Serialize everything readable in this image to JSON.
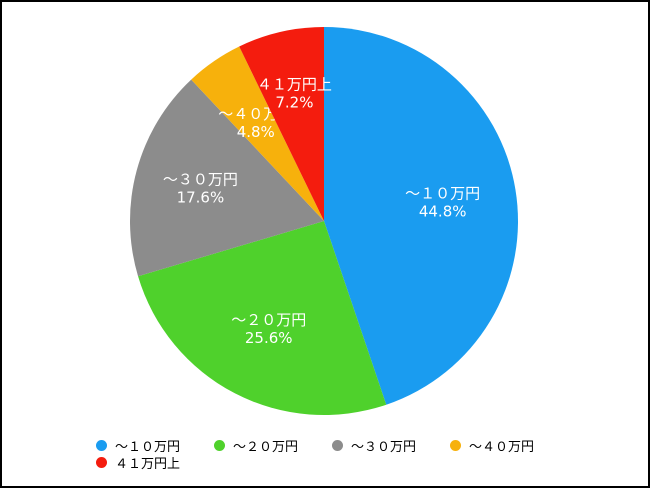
{
  "chart_data": {
    "type": "pie",
    "categories": [
      "～１０万円",
      "～２０万円",
      "～３０万円",
      "～４０万円",
      "４１万円上"
    ],
    "values": [
      44.8,
      25.6,
      17.6,
      4.8,
      7.2
    ],
    "value_labels": [
      "44.8%",
      "25.6%",
      "17.6%",
      "4.8%",
      "7.2%"
    ],
    "colors": [
      "#1a9cf0",
      "#4fd12c",
      "#8c8c8c",
      "#f7b10c",
      "#f41c0e"
    ],
    "start": "12 o'clock, clockwise",
    "legend_position": "bottom"
  },
  "legend": {
    "items": [
      {
        "label": "～１０万円",
        "color": "#1a9cf0"
      },
      {
        "label": "～２０万円",
        "color": "#4fd12c"
      },
      {
        "label": "～３０万円",
        "color": "#8c8c8c"
      },
      {
        "label": "～４０万円",
        "color": "#f7b10c"
      },
      {
        "label": "４１万円上",
        "color": "#f41c0e"
      }
    ]
  }
}
